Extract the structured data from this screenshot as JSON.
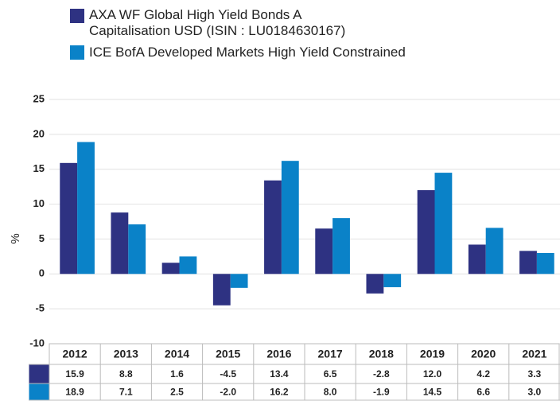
{
  "chart_data": {
    "type": "bar",
    "ylabel": "%",
    "categories": [
      "2012",
      "2013",
      "2014",
      "2015",
      "2016",
      "2017",
      "2018",
      "2019",
      "2020",
      "2021"
    ],
    "series": [
      {
        "name": "AXA WF Global High Yield Bonds A Capitalisation USD (ISIN : LU0184630167)",
        "color": "#2e3282",
        "values": [
          15.9,
          8.8,
          1.6,
          -4.5,
          13.4,
          6.5,
          -2.8,
          12.0,
          4.2,
          3.3
        ],
        "value_labels": [
          "15.9",
          "8.8",
          "1.6",
          "-4.5",
          "13.4",
          "6.5",
          "-2.8",
          "12.0",
          "4.2",
          "3.3"
        ]
      },
      {
        "name": "ICE BofA Developed Markets High Yield Constrained",
        "color": "#0a82c8",
        "values": [
          18.9,
          7.1,
          2.5,
          -2.0,
          16.2,
          8.0,
          -1.9,
          14.5,
          6.6,
          3.0
        ],
        "value_labels": [
          "18.9",
          "7.1",
          "2.5",
          "-2.0",
          "16.2",
          "8.0",
          "-1.9",
          "14.5",
          "6.6",
          "3.0"
        ]
      }
    ],
    "ylim": [
      -10,
      25
    ],
    "yticks": [
      -10,
      -5,
      0,
      5,
      10,
      15,
      20,
      25
    ],
    "grid": true
  }
}
